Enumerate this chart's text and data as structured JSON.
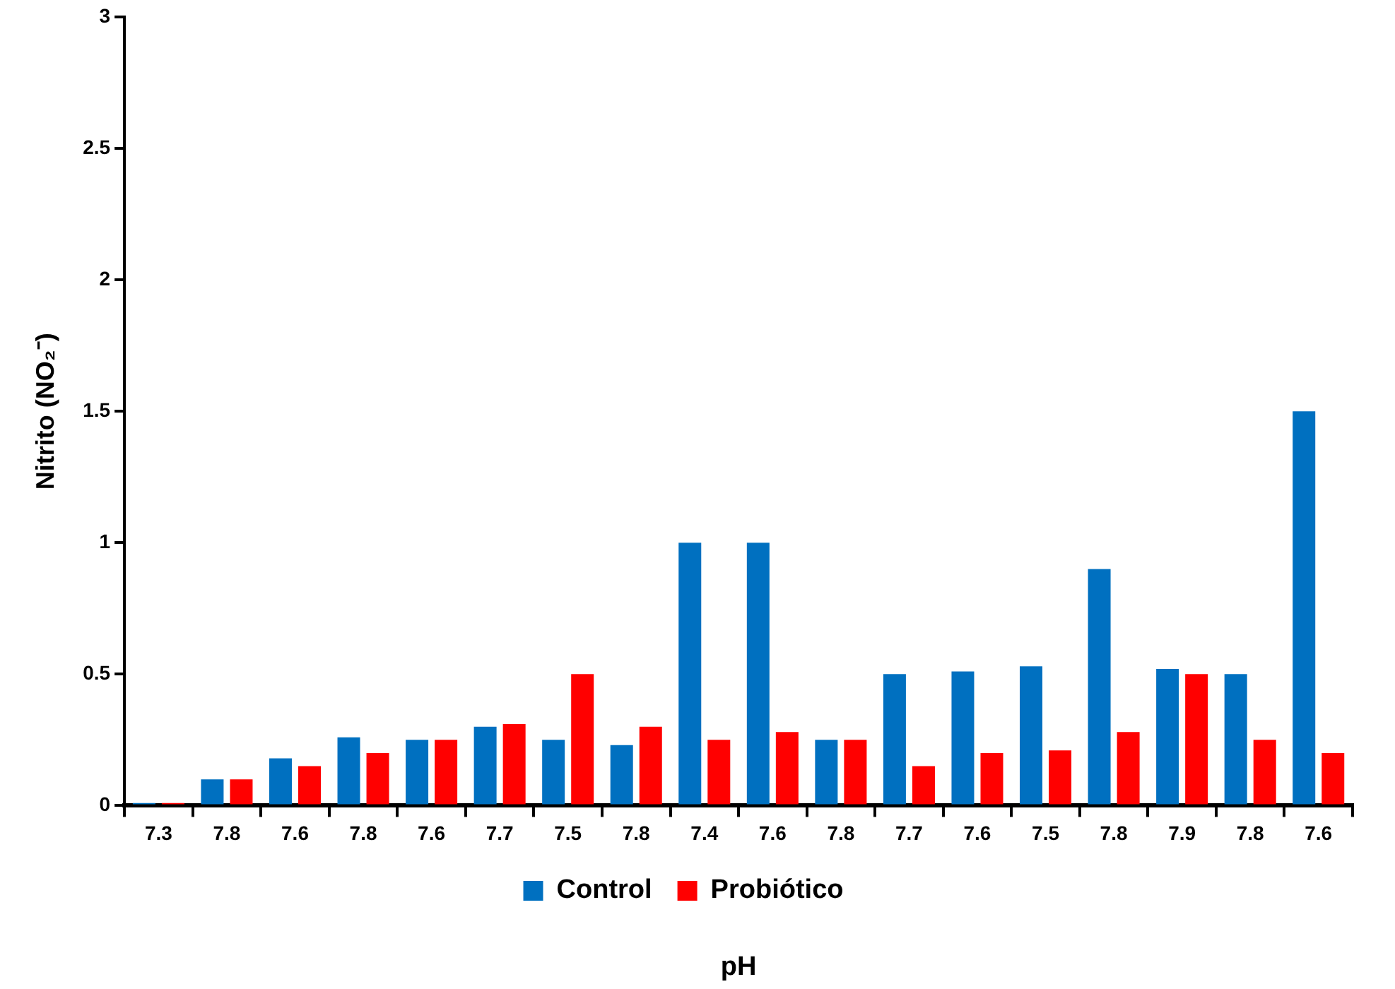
{
  "chart_data": {
    "type": "bar",
    "xlabel": "pH",
    "ylabel": "Nitrito (NO₂⁻)",
    "categories": [
      "7.3",
      "7.8",
      "7.6",
      "7.8",
      "7.6",
      "7.7",
      "7.5",
      "7.8",
      "7.4",
      "7.6",
      "7.8",
      "7.7",
      "7.6",
      "7.5",
      "7.8",
      "7.9",
      "7.8",
      "7.6"
    ],
    "series": [
      {
        "name": "Control",
        "color": "#0070c0",
        "values": [
          0.01,
          0.1,
          0.18,
          0.26,
          0.25,
          0.3,
          0.25,
          0.23,
          1.0,
          1.0,
          0.25,
          0.5,
          0.51,
          0.53,
          0.9,
          0.52,
          0.5,
          1.5
        ]
      },
      {
        "name": "Probiótico",
        "color": "#ff0000",
        "values": [
          0.01,
          0.1,
          0.15,
          0.2,
          0.25,
          0.31,
          0.5,
          0.3,
          0.25,
          0.28,
          0.25,
          0.15,
          0.2,
          0.21,
          0.28,
          0.5,
          0.25,
          0.2
        ]
      }
    ],
    "ylim": [
      0,
      3
    ],
    "yticks": [
      0,
      0.5,
      1,
      1.5,
      2,
      2.5,
      3
    ],
    "grid": false,
    "legend": "bottom"
  }
}
